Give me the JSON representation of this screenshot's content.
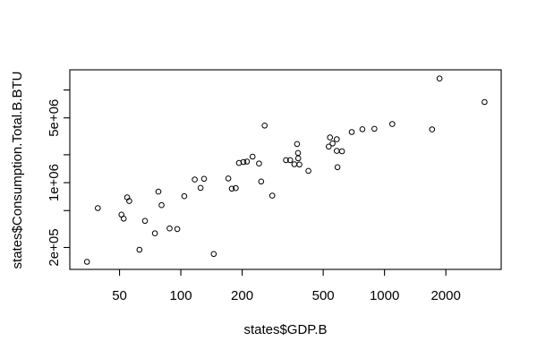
{
  "window": {
    "background": "#ffffff"
  },
  "chart_data": {
    "type": "scatter",
    "title": "",
    "xlabel": "states$GDP.B",
    "ylabel": "states$Consumption.Total.B.BTU",
    "x_scale": "log",
    "y_scale": "log",
    "xlim": [
      28.5,
      3740
    ],
    "ylim": [
      116000,
      16500000
    ],
    "grid": false,
    "legend": "none",
    "axis_color": "#000000",
    "marker": {
      "style": "open-circle",
      "color": "#000000",
      "radius_px": 2.8
    },
    "x_ticks": [
      {
        "value": 50,
        "label": "50"
      },
      {
        "value": 100,
        "label": "100"
      },
      {
        "value": 200,
        "label": "200"
      },
      {
        "value": 500,
        "label": "500"
      },
      {
        "value": 1000,
        "label": "1000"
      },
      {
        "value": 2000,
        "label": "2000"
      }
    ],
    "y_ticks": [
      {
        "value": 200000,
        "label": "2e+05"
      },
      {
        "value": 500000,
        "label": ""
      },
      {
        "value": 1000000,
        "label": "1e+06"
      },
      {
        "value": 2000000,
        "label": ""
      },
      {
        "value": 5000000,
        "label": "5e+06"
      },
      {
        "value": 10000000,
        "label": ""
      }
    ],
    "points": [
      [
        34.6,
        140000
      ],
      [
        39.1,
        532000
      ],
      [
        51.1,
        452000
      ],
      [
        52.4,
        409000
      ],
      [
        54.5,
        693000
      ],
      [
        55.8,
        634000
      ],
      [
        62.6,
        189000
      ],
      [
        66.7,
        387000
      ],
      [
        74.6,
        284000
      ],
      [
        77.6,
        800000
      ],
      [
        80.4,
        573000
      ],
      [
        88.1,
        321000
      ],
      [
        96.1,
        316000
      ],
      [
        104,
        715000
      ],
      [
        117,
        1080000
      ],
      [
        125,
        879000
      ],
      [
        130,
        1100000
      ],
      [
        145,
        170000
      ],
      [
        171,
        1110000
      ],
      [
        178,
        861000
      ],
      [
        186,
        873000
      ],
      [
        193,
        1630000
      ],
      [
        203,
        1670000
      ],
      [
        211,
        1690000
      ],
      [
        225,
        1910000
      ],
      [
        242,
        1610000
      ],
      [
        248,
        1030000
      ],
      [
        258,
        4130000
      ],
      [
        281,
        724000
      ],
      [
        328,
        1750000
      ],
      [
        344,
        1750000
      ],
      [
        361,
        1580000
      ],
      [
        372,
        2610000
      ],
      [
        376,
        2090000
      ],
      [
        377,
        1830000
      ],
      [
        382,
        1570000
      ],
      [
        423,
        1340000
      ],
      [
        532,
        2450000
      ],
      [
        540,
        3070000
      ],
      [
        556,
        2650000
      ],
      [
        583,
        2940000
      ],
      [
        583,
        2200000
      ],
      [
        618,
        2180000
      ],
      [
        588,
        1470000
      ],
      [
        690,
        3520000
      ],
      [
        779,
        3770000
      ],
      [
        892,
        3810000
      ],
      [
        1092,
        4290000
      ],
      [
        1713,
        3750000
      ],
      [
        1862,
        13300000
      ],
      [
        3097,
        7410000
      ]
    ]
  }
}
